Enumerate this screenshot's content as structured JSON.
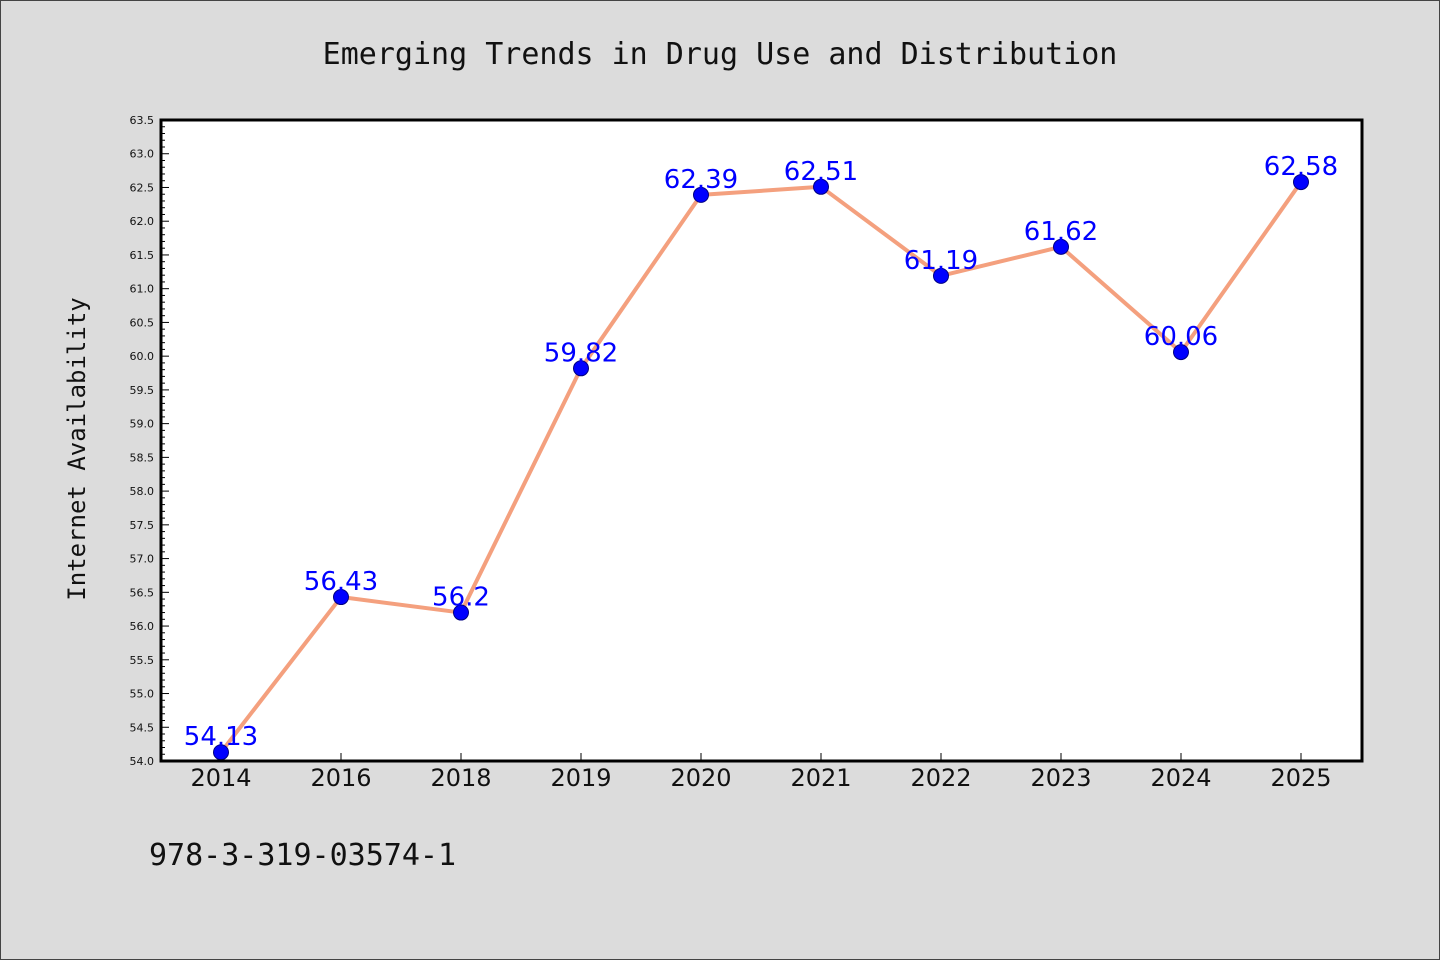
{
  "chart_data": {
    "type": "line",
    "title": "Emerging Trends in Drug Use and Distribution",
    "xlabel": "",
    "ylabel": "Internet Availability",
    "categories": [
      "2014",
      "2016",
      "2018",
      "2019",
      "2020",
      "2021",
      "2022",
      "2023",
      "2024",
      "2025"
    ],
    "series": [
      {
        "values": [
          54.13,
          56.43,
          56.2,
          59.82,
          62.39,
          62.51,
          61.19,
          61.62,
          60.06,
          62.58
        ],
        "data_labels": [
          "54.13",
          "56.43",
          "56.2",
          "59.82",
          "62.39",
          "62.51",
          "61.19",
          "61.62",
          "60.06",
          "62.58"
        ]
      }
    ],
    "ylim": [
      54.0,
      63.5
    ],
    "y_ticks": [
      "54.0",
      "54.5",
      "55.0",
      "55.5",
      "56.0",
      "56.5",
      "57.0",
      "57.5",
      "58.0",
      "58.5",
      "59.0",
      "59.5",
      "60.0",
      "60.5",
      "61.0",
      "61.5",
      "62.0",
      "62.5",
      "63.0",
      "63.5"
    ],
    "grid": false,
    "legend": "none",
    "colors": {
      "line": "#f4a07e",
      "marker": "#0000ff",
      "marker_edge": "#000080",
      "data_label": "#0000ff",
      "plot_bg": "#ffffff",
      "page_bg": "#dcdcdc",
      "axis": "#000000"
    }
  },
  "footer": {
    "code": "978-3-319-03574-1"
  }
}
